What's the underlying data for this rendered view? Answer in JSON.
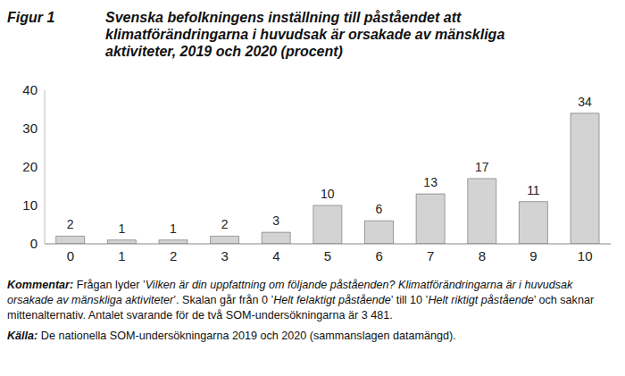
{
  "chart_data": {
    "type": "bar",
    "figure_label": "Figur 1",
    "title": "Svenska befolkningens inställning till påståendet att klimatförändringarna i huvudsak är orsakade av mänskliga aktiviteter, 2019 och 2020 (procent)",
    "categories": [
      "0",
      "1",
      "2",
      "3",
      "4",
      "5",
      "6",
      "7",
      "8",
      "9",
      "10"
    ],
    "values": [
      2,
      1,
      1,
      2,
      3,
      10,
      6,
      13,
      17,
      11,
      34
    ],
    "color": "#d3d3d3",
    "ylim": [
      0,
      40
    ],
    "yticks": [
      0,
      10,
      20,
      30,
      40
    ],
    "grid": false,
    "data_labels": true,
    "comment": {
      "label": "Kommentar:",
      "parts": [
        " Frågan lyder ’",
        "Vilken är din uppfattning om följande påståenden? Klimatförändringarna är i huvudsak orsakade av mänskliga aktiviteter",
        "’. Skalan går från 0 ’",
        "Helt felaktigt påstående",
        "’ till 10 ’",
        "Helt riktigt påstående",
        "’ och saknar mittenalternativ. Antalet svarande för de två SOM-undersökningarna är 3 481."
      ]
    },
    "source": {
      "label": "Källa:",
      "text": " De nationella SOM-undersökningarna 2019 och 2020 (sammanslagen datamängd)."
    }
  }
}
